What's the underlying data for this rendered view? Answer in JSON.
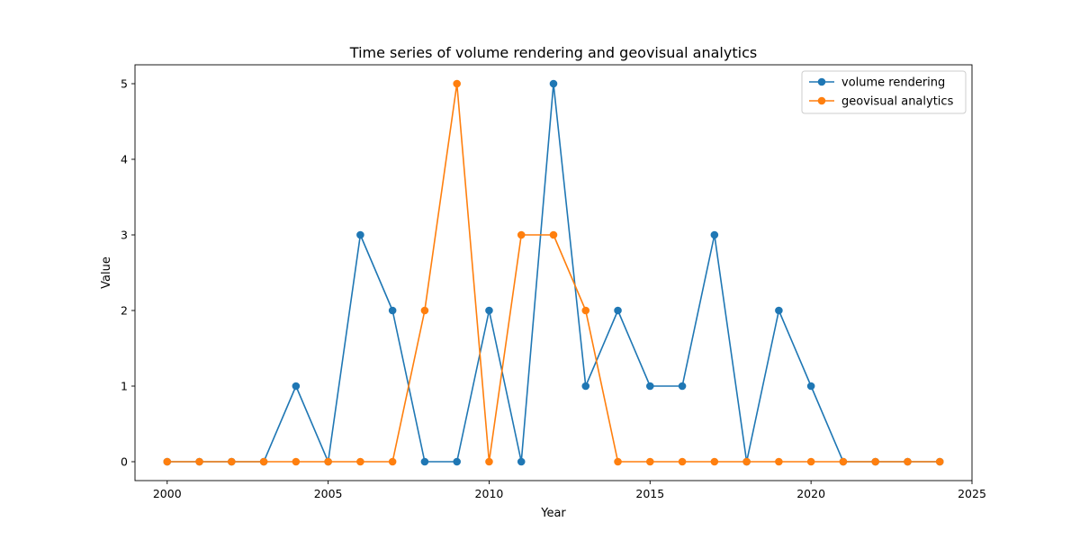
{
  "chart_data": {
    "type": "line",
    "title": "Time series of volume rendering and geovisual analytics",
    "xlabel": "Year",
    "ylabel": "Value",
    "x": [
      2000,
      2001,
      2002,
      2003,
      2004,
      2005,
      2006,
      2007,
      2008,
      2009,
      2010,
      2011,
      2012,
      2013,
      2014,
      2015,
      2016,
      2017,
      2018,
      2019,
      2020,
      2021,
      2022,
      2023,
      2024
    ],
    "xticks": [
      "2000",
      "2005",
      "2010",
      "2015",
      "2020",
      "2025"
    ],
    "yticks": [
      "0",
      "1",
      "2",
      "3",
      "4",
      "5"
    ],
    "xlim": [
      1999,
      2025
    ],
    "ylim": [
      -0.25,
      5.25
    ],
    "grid": false,
    "legend_position": "top-right",
    "series": [
      {
        "name": "volume rendering",
        "color": "#1f77b4",
        "marker": "circle",
        "values": [
          0,
          0,
          0,
          0,
          1,
          0,
          3,
          2,
          0,
          0,
          2,
          0,
          5,
          1,
          2,
          1,
          1,
          3,
          0,
          2,
          1,
          0,
          0,
          0,
          0
        ]
      },
      {
        "name": "geovisual analytics",
        "color": "#ff7f0e",
        "marker": "circle",
        "values": [
          0,
          0,
          0,
          0,
          0,
          0,
          0,
          0,
          2,
          5,
          0,
          3,
          3,
          2,
          0,
          0,
          0,
          0,
          0,
          0,
          0,
          0,
          0,
          0,
          0
        ]
      }
    ]
  }
}
